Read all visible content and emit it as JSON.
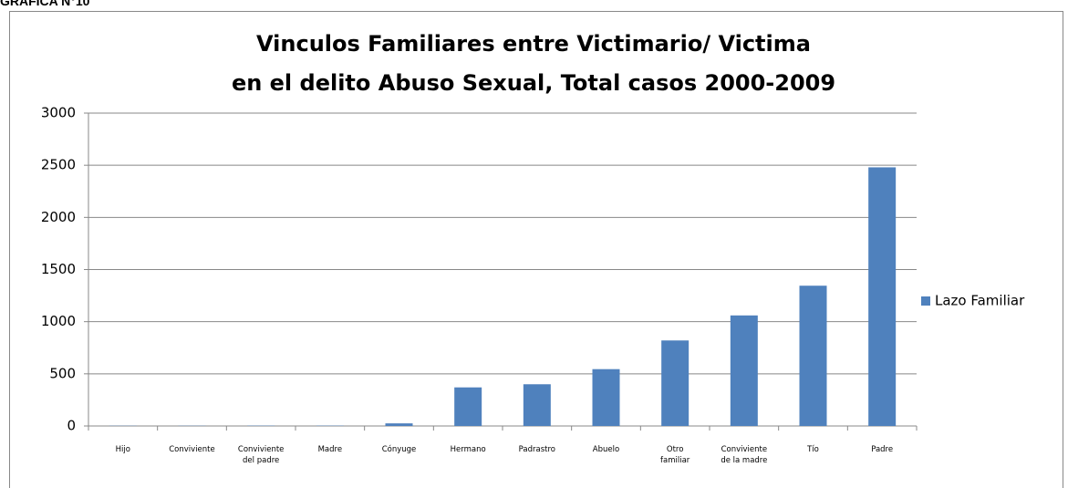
{
  "caption": "GRAFICA N°10",
  "chart_data": {
    "type": "bar",
    "title": [
      "Vinculos Familiares entre Victimario/ Victima",
      "en  el delito Abuso Sexual, Total casos 2000-2009"
    ],
    "categories": [
      "Hijo",
      "Conviviente",
      "Conviviente\ndel padre",
      "Madre",
      "Cónyuge",
      "Hermano",
      "Padrastro",
      "Abuelo",
      "Otro\nfamiliar",
      "Conviviente\nde la madre",
      "Tío",
      "Padre"
    ],
    "series": [
      {
        "name": "Lazo Familiar",
        "color": "#4f81bd",
        "values": [
          2,
          2,
          3,
          3,
          25,
          370,
          400,
          545,
          820,
          1060,
          1345,
          2480
        ]
      }
    ],
    "ylim": [
      0,
      3000
    ],
    "yticks": [
      0,
      500,
      1000,
      1500,
      2000,
      2500,
      3000
    ],
    "grid": true,
    "legend": "right"
  }
}
